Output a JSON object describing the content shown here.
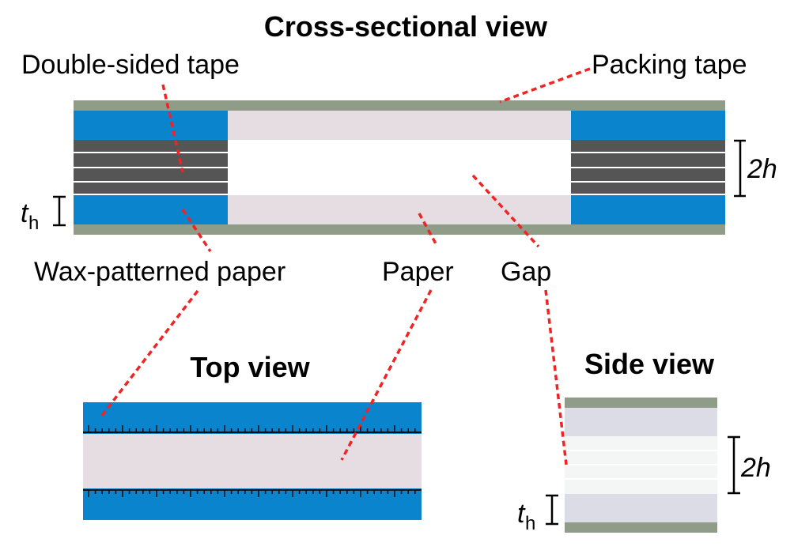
{
  "titles": {
    "cross_section": "Cross-sectional view",
    "top": "Top view",
    "side": "Side view"
  },
  "labels": {
    "double_sided_tape": "Double-sided tape",
    "packing_tape": "Packing tape",
    "wax_patterned_paper": "Wax-patterned paper",
    "paper": "Paper",
    "gap": "Gap"
  },
  "dimensions": {
    "gap_height": "2h",
    "th_main": "t",
    "th_sub": "h"
  },
  "colors": {
    "packing_tape": "#8f9c87",
    "wax_paper": "#0a84cc",
    "paper": "#e6dde3",
    "tape_layers": "#555555",
    "side_paper": "#dcdce6",
    "gap_fill": "#f3f6f5",
    "leader": "#f02424"
  }
}
